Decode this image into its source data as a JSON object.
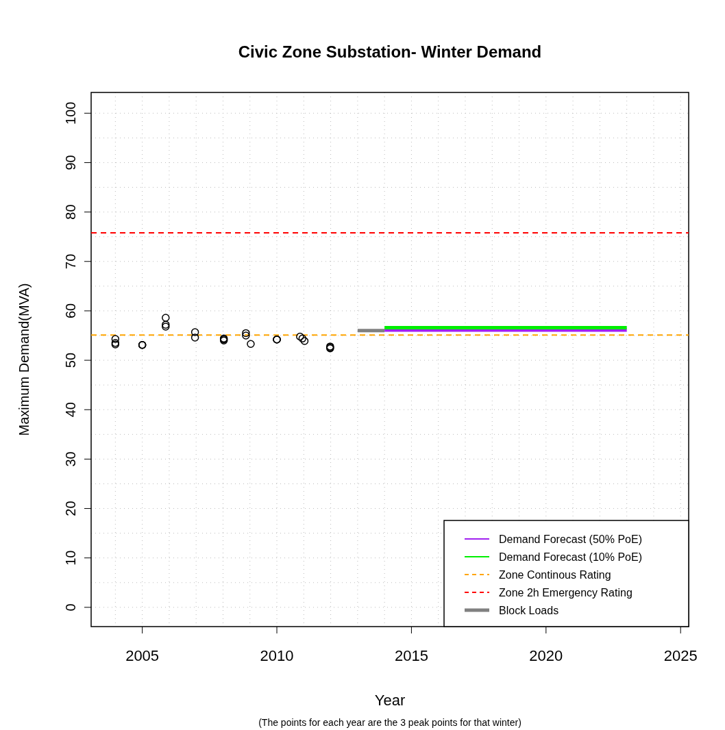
{
  "chart_data": {
    "type": "scatter",
    "title": "Civic Zone Substation- Winter Demand",
    "xlabel": "Year",
    "ylabel": "Maximum Demand(MVA)",
    "annotations": [
      "(The points for each year are the 3 peak points for that winter)"
    ],
    "xlim": [
      2003.1,
      2025.3
    ],
    "ylim": [
      -3.9,
      104.2
    ],
    "xticks": [
      {
        "value": 2004,
        "label": null
      },
      2005,
      {
        "value": 2006,
        "label": null
      },
      {
        "value": 2007,
        "label": null
      },
      {
        "value": 2008,
        "label": null
      },
      {
        "value": 2009,
        "label": null
      },
      2010,
      {
        "value": 2011,
        "label": null
      },
      {
        "value": 2012,
        "label": null
      },
      {
        "value": 2013,
        "label": null
      },
      {
        "value": 2014,
        "label": null
      },
      2015,
      {
        "value": 2016,
        "label": null
      },
      {
        "value": 2017,
        "label": null
      },
      {
        "value": 2018,
        "label": null
      },
      {
        "value": 2019,
        "label": null
      },
      2020,
      {
        "value": 2021,
        "label": null
      },
      {
        "value": 2022,
        "label": null
      },
      {
        "value": 2023,
        "label": null
      },
      {
        "value": 2024,
        "label": null
      },
      2025
    ],
    "yticks": [
      0,
      {
        "value": 5,
        "label": null
      },
      10,
      {
        "value": 15,
        "label": null
      },
      20,
      {
        "value": 25,
        "label": null
      },
      30,
      {
        "value": 35,
        "label": null
      },
      40,
      {
        "value": 45,
        "label": null
      },
      50,
      {
        "value": 55,
        "label": null
      },
      60,
      {
        "value": 65,
        "label": null
      },
      70,
      {
        "value": 75,
        "label": null
      },
      80,
      {
        "value": 85,
        "label": null
      },
      90,
      {
        "value": 95,
        "label": null
      },
      100
    ],
    "grid": true,
    "legend": "bottom right",
    "series": [
      {
        "type": "scatter",
        "marker": "circle",
        "color": "#000000",
        "x": [
          2004,
          2004,
          2004,
          2005,
          2005,
          2005,
          2005.87,
          2005.87,
          2005.87,
          2006.96,
          2006.96,
          2008.03,
          2008.03,
          2008.03,
          2008.85,
          2008.85,
          2009.03,
          2010,
          2010,
          2010,
          2010.86,
          2010.95,
          2011.03,
          2011.98,
          2011.98,
          2011.98
        ],
        "values": [
          54.3,
          53.5,
          53.2,
          53.1,
          53.1,
          53.1,
          58.6,
          57.2,
          56.8,
          55.7,
          54.6,
          54.4,
          54.2,
          54.0,
          55.5,
          55.0,
          53.3,
          54.2,
          54.2,
          54.2,
          54.8,
          54.4,
          53.9,
          52.8,
          52.4,
          52.6
        ]
      },
      {
        "type": "line",
        "name": "Demand Forecast (50% PoE)",
        "marker": "none",
        "color": "#a020f0",
        "x": [
          2014,
          2023
        ],
        "values": [
          56.1,
          56.1
        ]
      },
      {
        "type": "line",
        "name": "Demand Forecast (10% PoE)",
        "marker": "none",
        "color": "#00ee00",
        "x": [
          2014,
          2023
        ],
        "values": [
          56.6,
          56.6
        ]
      },
      {
        "type": "line",
        "name": "Block Loads",
        "marker": "none",
        "color": "#808080",
        "x": [
          2013,
          2014
        ],
        "values": [
          56.0,
          56.0
        ]
      }
    ],
    "ref_lines": [
      {
        "axis": "y",
        "value": 55.1,
        "label": "Zone Continous Rating",
        "color": "#ffa500",
        "line_style": "dashed"
      },
      {
        "axis": "y",
        "value": 75.8,
        "label": "Zone 2h Emergency Rating",
        "color": "#ff0000",
        "line_style": "dashed"
      }
    ]
  }
}
